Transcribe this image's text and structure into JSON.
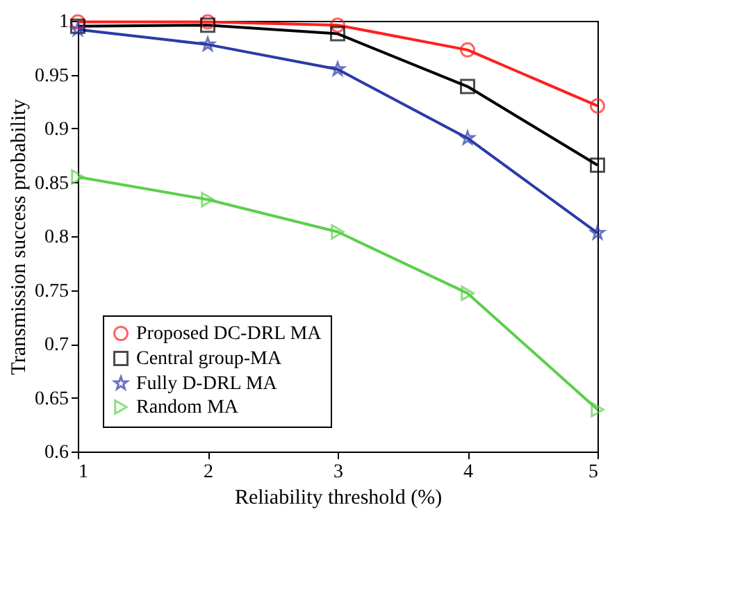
{
  "chart_data": {
    "type": "line",
    "xlabel": "Reliability threshold (%)",
    "ylabel": "Transmission success probability",
    "x": [
      1,
      2,
      3,
      4,
      5
    ],
    "series": [
      {
        "name": "Proposed DC-DRL MA",
        "color": "#ff2020",
        "marker": "circle",
        "values": [
          0.999,
          0.999,
          0.996,
          0.973,
          0.921
        ]
      },
      {
        "name": "Central group-MA",
        "color": "#000000",
        "marker": "square",
        "values": [
          0.995,
          0.996,
          0.988,
          0.939,
          0.866
        ]
      },
      {
        "name": "Fully D-DRL MA",
        "color": "#2b3aa8",
        "marker": "star",
        "values": [
          0.992,
          0.978,
          0.955,
          0.891,
          0.803
        ]
      },
      {
        "name": "Random MA",
        "color": "#5ccf4c",
        "marker": "triangle",
        "values": [
          0.855,
          0.834,
          0.804,
          0.747,
          0.639
        ]
      }
    ],
    "xlim": [
      1,
      5
    ],
    "xticks": [
      1,
      2,
      3,
      4,
      5
    ],
    "ylim": [
      0.6,
      1
    ],
    "yticks": [
      0.6,
      0.65,
      0.7,
      0.75,
      0.8,
      0.85,
      0.9,
      0.95,
      1
    ],
    "grid": false,
    "legend": "bottom left",
    "line_style": "solid"
  }
}
